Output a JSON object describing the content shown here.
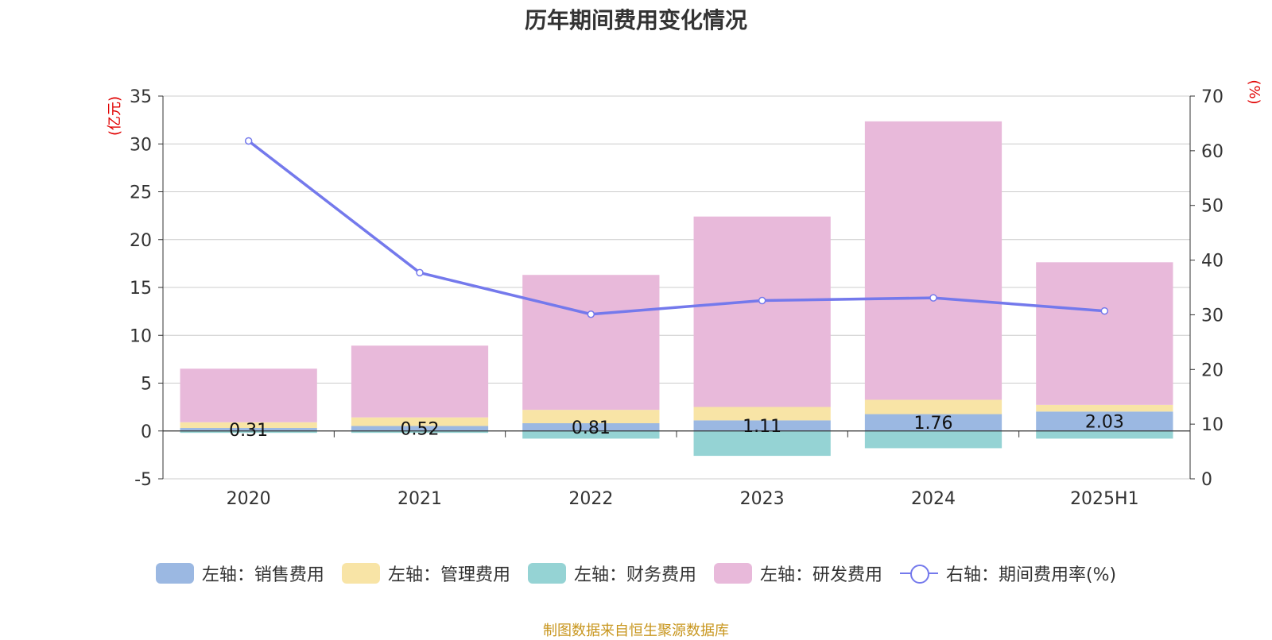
{
  "chart_data": {
    "type": "bar",
    "title": "历年期间费用变化情况",
    "source": "制图数据来自恒生聚源数据库",
    "categories": [
      "2020",
      "2021",
      "2022",
      "2023",
      "2024",
      "2025H1"
    ],
    "y_left": {
      "unit": "(亿元)",
      "ylim": [
        -5,
        35
      ],
      "ticks": [
        -5,
        0,
        5,
        10,
        15,
        20,
        25,
        30,
        35
      ]
    },
    "y_right": {
      "unit": "(%)",
      "ylim": [
        0,
        70
      ],
      "ticks": [
        0,
        10,
        20,
        30,
        40,
        50,
        60,
        70
      ]
    },
    "series": [
      {
        "name": "左轴：销售费用",
        "type": "bar",
        "axis": "left",
        "color": "#9BB8E2",
        "values": [
          0.31,
          0.52,
          0.81,
          1.11,
          1.76,
          2.03
        ],
        "labels": [
          "0.31",
          "0.52",
          "0.81",
          "1.11",
          "1.76",
          "2.03"
        ]
      },
      {
        "name": "左轴：管理费用",
        "type": "bar",
        "axis": "left",
        "color": "#F8E4A6",
        "values": [
          0.6,
          0.9,
          1.4,
          1.4,
          1.5,
          0.7
        ]
      },
      {
        "name": "左轴：财务费用",
        "type": "bar",
        "axis": "left",
        "color": "#95D3D4",
        "values": [
          -0.2,
          -0.2,
          -0.8,
          -2.6,
          -1.8,
          -0.8
        ]
      },
      {
        "name": "左轴：研发费用",
        "type": "bar",
        "axis": "left",
        "color": "#E8B9DA",
        "values": [
          5.6,
          7.5,
          14.1,
          19.9,
          29.1,
          14.9
        ]
      },
      {
        "name": "右轴：期间费用率(%)",
        "type": "line",
        "axis": "right",
        "color": "#7479EC",
        "values": [
          61.8,
          37.7,
          30.1,
          32.6,
          33.1,
          30.7
        ]
      }
    ],
    "grid": true,
    "legend_position": "bottom"
  }
}
